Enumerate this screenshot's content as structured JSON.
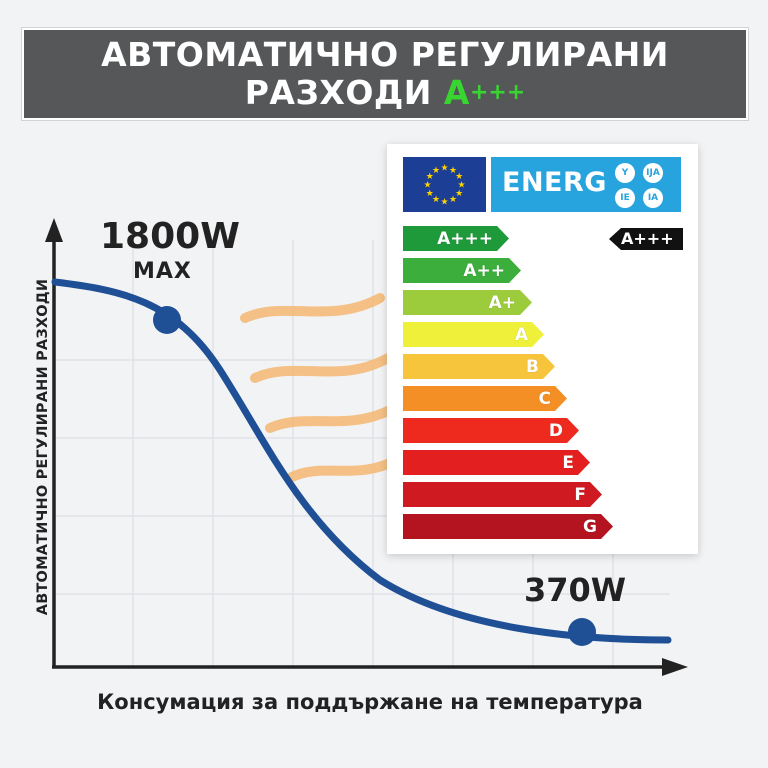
{
  "banner": {
    "line1": "АВТОМАТИЧНО РЕГУЛИРАНИ",
    "line2": "РАЗХОДИ",
    "accent_letter": "A",
    "accent_plus": "+++",
    "accent_color": "#38d430",
    "background": "#555759"
  },
  "graph": {
    "y_axis_label": "АВТОМАТИЧНО РЕГУЛИРАНИ РАЗХОДИ",
    "x_axis_label": "Консумация за поддържане на температура",
    "max_power": "1800W",
    "max_caption": "MAX",
    "min_power": "370W",
    "curve_color": "#1f4f95",
    "heat_wave_color": "#f5b46a"
  },
  "energy_label": {
    "word": "ENERG",
    "languages": [
      "Y",
      "IJA",
      "IE",
      "IA"
    ],
    "eu_flag": "eu-flag-icon",
    "selected_class": "A+++",
    "classes": [
      {
        "label": "A+++",
        "color": "#1f9a3b"
      },
      {
        "label": "A++",
        "color": "#3bae3b"
      },
      {
        "label": "A+",
        "color": "#9ccb3b"
      },
      {
        "label": "A",
        "color": "#eef03a"
      },
      {
        "label": "B",
        "color": "#f6c53b"
      },
      {
        "label": "C",
        "color": "#f48f25"
      },
      {
        "label": "D",
        "color": "#ee2a1f"
      },
      {
        "label": "E",
        "color": "#e3201f"
      },
      {
        "label": "F",
        "color": "#cf1a22"
      },
      {
        "label": "G",
        "color": "#b3141f"
      }
    ]
  }
}
